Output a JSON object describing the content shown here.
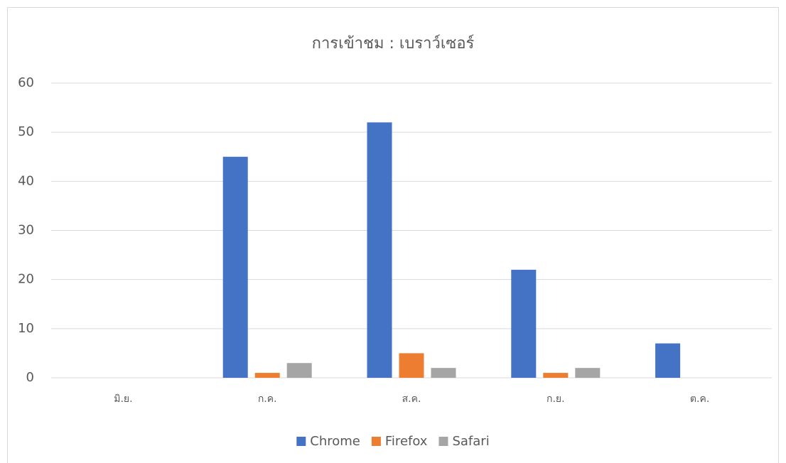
{
  "chart_data": {
    "type": "bar",
    "title": "การเข้าชม : เบราว์เซอร์",
    "categories": [
      "มิ.ย.",
      "ก.ค.",
      "ส.ค.",
      "ก.ย.",
      "ต.ค."
    ],
    "series": [
      {
        "name": "Chrome",
        "color": "#4472c4",
        "values": [
          0,
          45,
          52,
          22,
          7
        ]
      },
      {
        "name": "Firefox",
        "color": "#ed7d31",
        "values": [
          0,
          1,
          5,
          1,
          0
        ]
      },
      {
        "name": "Safari",
        "color": "#a5a5a5",
        "values": [
          0,
          3,
          2,
          2,
          0
        ]
      }
    ],
    "ylim": [
      0,
      60
    ],
    "yticks": [
      0,
      10,
      20,
      30,
      40,
      50,
      60
    ],
    "grid": true,
    "legend": "bottom"
  }
}
